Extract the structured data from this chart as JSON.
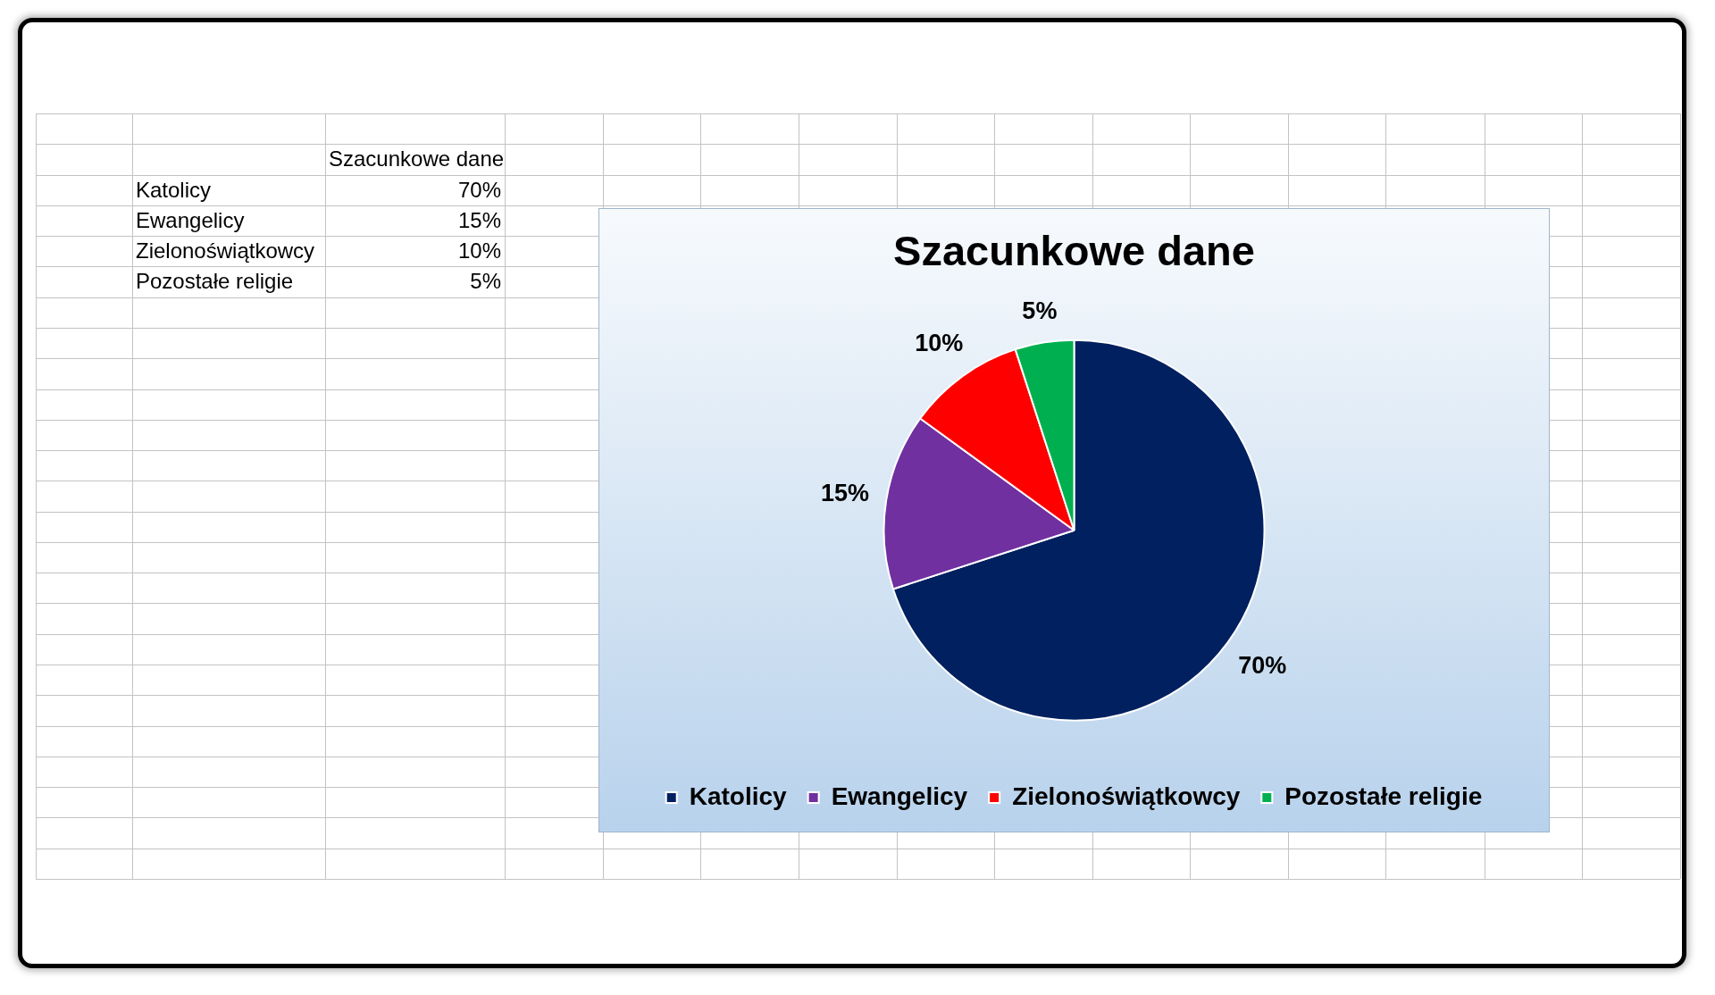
{
  "chart_data": {
    "type": "pie",
    "title": "Szacunkowe dane",
    "categories": [
      "Katolicy",
      "Ewangelicy",
      "Zielonoświątkowcy",
      "Pozostałe religie"
    ],
    "values": [
      70,
      15,
      10,
      5
    ],
    "value_labels": [
      "70%",
      "15%",
      "10%",
      "5%"
    ],
    "colors": [
      "#002060",
      "#7030a0",
      "#ff0000",
      "#00b050"
    ],
    "legend": "bottom"
  }
}
